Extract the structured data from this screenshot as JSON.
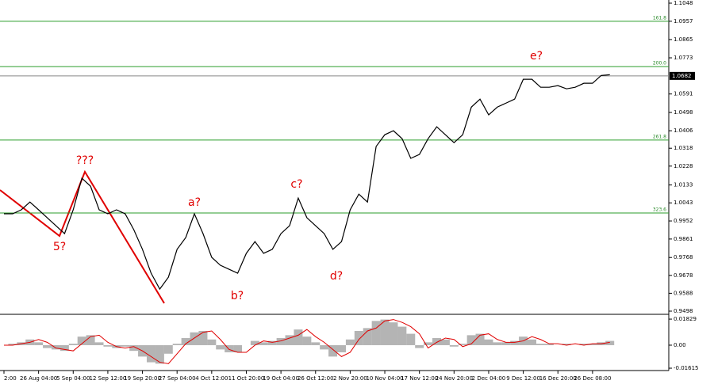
{
  "chart_data": [
    {
      "type": "line",
      "categories": [
        "2:00",
        null,
        null,
        null,
        "26 Aug 04:00",
        null,
        null,
        null,
        "5 Sep 04:00",
        null,
        null,
        null,
        "12 Sep 12:00",
        null,
        null,
        null,
        "19 Sep 20:00",
        null,
        null,
        null,
        "27 Sep 04:00",
        null,
        null,
        null,
        "4 Oct 12:00",
        null,
        null,
        null,
        "11 Oct 20:00",
        null,
        null,
        null,
        "19 Oct 04:00",
        null,
        null,
        null,
        "26 Oct 12:00",
        null,
        null,
        null,
        "2 Nov 20:00",
        null,
        null,
        null,
        "10 Nov 04:00",
        null,
        null,
        null,
        "17 Nov 12:00",
        null,
        null,
        null,
        "24 Nov 20:00",
        null,
        null,
        null,
        "2 Dec 04:00",
        null,
        null,
        null,
        "9 Dec 12:00",
        null,
        null,
        null,
        "16 Dec 20:00",
        null,
        null,
        null,
        "26 Dec 08:00",
        null,
        null
      ],
      "values": [
        0.9988,
        0.9988,
        1.0008,
        1.0047,
        1.0008,
        0.9968,
        0.9928,
        0.9888,
        1.0008,
        1.0167,
        1.0127,
        1.0008,
        0.9988,
        1.0008,
        0.9988,
        0.9908,
        0.9809,
        0.9689,
        0.9609,
        0.9669,
        0.9809,
        0.9868,
        0.9988,
        0.9888,
        0.9769,
        0.9729,
        0.9709,
        0.9689,
        0.9789,
        0.9848,
        0.9789,
        0.9809,
        0.9888,
        0.9928,
        1.0067,
        0.9968,
        0.9928,
        0.9888,
        0.9809,
        0.9848,
        1.0008,
        1.0087,
        1.0047,
        1.0327,
        1.0386,
        1.0406,
        1.0366,
        1.0267,
        1.0287,
        1.0366,
        1.0426,
        1.0386,
        1.0346,
        1.0386,
        1.0525,
        1.0565,
        1.0486,
        1.0525,
        1.0545,
        1.0565,
        1.0665,
        1.0665,
        1.0625,
        1.0625,
        1.0633,
        1.0617,
        1.0625,
        1.0645,
        1.0645,
        1.0684,
        1.0688
      ],
      "color": "#000000",
      "ylim": [
        0.9482,
        1.1064
      ],
      "yticks": [
        1.1048,
        1.0957,
        1.0865,
        1.0773,
        1.0591,
        1.0498,
        1.0406,
        1.0318,
        1.0228,
        1.0133,
        1.0043,
        0.9952,
        0.9861,
        0.9768,
        0.9678,
        0.9588,
        0.9498
      ],
      "current_price": 1.0682,
      "fib_levels": [
        {
          "value": 1.0957,
          "label": "161.8"
        },
        {
          "value": 1.0729,
          "label": "200.0"
        },
        {
          "value": 1.0359,
          "label": "261.8"
        },
        {
          "value": 0.9992,
          "label": "323.6"
        }
      ],
      "fib_color": "#2a9d2a",
      "annotations": [
        "5?",
        "???",
        "a?",
        "b?",
        "c?",
        "d?",
        "e?"
      ]
    },
    {
      "type": "bar",
      "values": [
        0.0,
        0.001,
        0.002,
        0.004,
        0.002,
        -0.002,
        -0.003,
        -0.004,
        0.001,
        0.006,
        0.007,
        0.002,
        -0.001,
        -0.002,
        -0.001,
        -0.004,
        -0.008,
        -0.012,
        -0.013,
        -0.006,
        0.001,
        0.005,
        0.009,
        0.01,
        0.004,
        -0.003,
        -0.005,
        -0.005,
        0.0,
        0.003,
        0.002,
        0.003,
        0.005,
        0.007,
        0.011,
        0.006,
        0.002,
        -0.003,
        -0.008,
        -0.005,
        0.004,
        0.01,
        0.012,
        0.017,
        0.018,
        0.016,
        0.013,
        0.008,
        -0.002,
        0.002,
        0.005,
        0.004,
        -0.001,
        0.001,
        0.007,
        0.008,
        0.004,
        0.002,
        0.002,
        0.003,
        0.006,
        0.004,
        0.001,
        0.001,
        0.0,
        0.001,
        0.0,
        0.001,
        0.001,
        0.002,
        0.003
      ],
      "color": "#b4b4b4",
      "signal": [
        0.0,
        0.0,
        0.001,
        0.002,
        0.004,
        0.002,
        -0.002,
        -0.003,
        -0.004,
        0.001,
        0.006,
        0.007,
        0.002,
        -0.001,
        -0.002,
        -0.001,
        -0.004,
        -0.008,
        -0.012,
        -0.013,
        -0.006,
        0.001,
        0.005,
        0.009,
        0.01,
        0.004,
        -0.003,
        -0.005,
        -0.005,
        0.0,
        0.003,
        0.002,
        0.003,
        0.005,
        0.007,
        0.011,
        0.006,
        0.002,
        -0.003,
        -0.008,
        -0.005,
        0.004,
        0.01,
        0.012,
        0.017,
        0.018,
        0.016,
        0.013,
        0.008,
        -0.002,
        0.002,
        0.005,
        0.004,
        -0.001,
        0.001,
        0.007,
        0.008,
        0.004,
        0.002,
        0.002,
        0.003,
        0.006,
        0.004,
        0.001,
        0.001,
        0.0,
        0.001,
        0.0,
        0.001,
        0.001,
        0.002
      ],
      "signal_color": "#e00000",
      "ylim": [
        -0.0178,
        0.0211
      ],
      "yticks": [
        0.01829,
        {
          "value": 0,
          "label": "0.00"
        },
        -0.01615
      ]
    }
  ]
}
